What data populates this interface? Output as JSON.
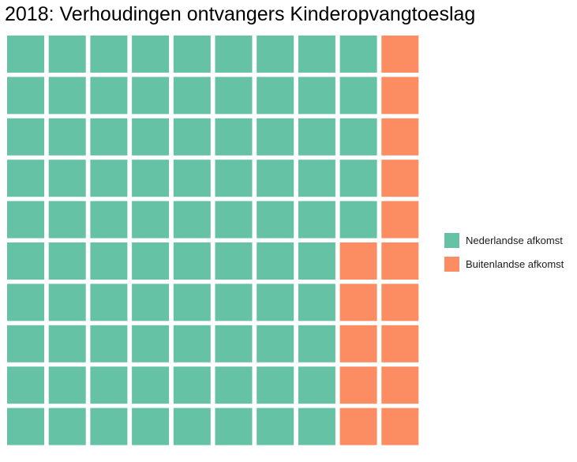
{
  "chart_data": {
    "type": "waffle",
    "title": "2018: Verhoudingen ontvangers Kinderopvangtoeslag",
    "grid": {
      "columns": 10,
      "rows": 10
    },
    "fill_order": "column-major",
    "series": [
      {
        "name": "Nederlandse afkomst",
        "value": 85,
        "color": "#66C2A5"
      },
      {
        "name": "Buitenlandse afkomst",
        "value": 15,
        "color": "#FC8D62"
      }
    ],
    "legend_position": "right"
  }
}
